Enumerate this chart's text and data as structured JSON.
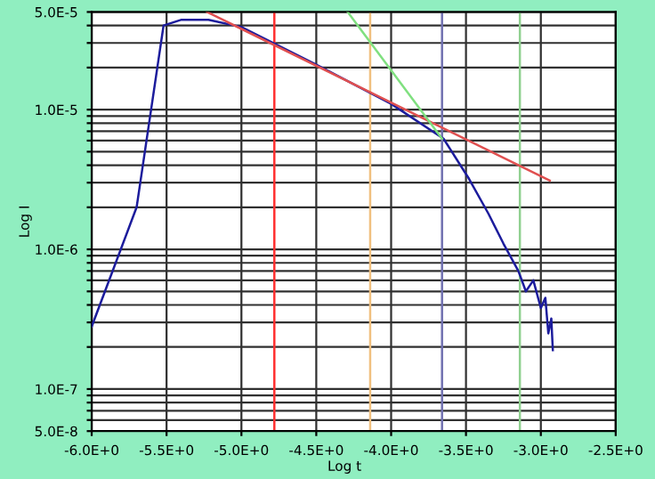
{
  "chart_data": {
    "type": "line",
    "xlabel": "Log t",
    "ylabel": "Log I",
    "log": "y",
    "xlim": [
      -6.0,
      -2.5
    ],
    "ylim": [
      5e-08,
      5e-05
    ],
    "xticks": [
      {
        "value": -6.0,
        "label": "-6.0E+0"
      },
      {
        "value": -5.5,
        "label": "-5.5E+0"
      },
      {
        "value": -5.0,
        "label": "-5.0E+0"
      },
      {
        "value": -4.5,
        "label": "-4.5E+0"
      },
      {
        "value": -4.0,
        "label": "-4.0E+0"
      },
      {
        "value": -3.5,
        "label": "-3.5E+0"
      },
      {
        "value": -3.0,
        "label": "-3.0E+0"
      },
      {
        "value": -2.5,
        "label": "-2.5E+0"
      }
    ],
    "yticks": [
      {
        "value": 5e-08,
        "label": "5.0E-8"
      },
      {
        "value": 6e-08,
        "label": null
      },
      {
        "value": 7e-08,
        "label": null
      },
      {
        "value": 8e-08,
        "label": null
      },
      {
        "value": 9e-08,
        "label": null
      },
      {
        "value": 1e-07,
        "label": "1.0E-7"
      },
      {
        "value": 2e-07,
        "label": null
      },
      {
        "value": 3e-07,
        "label": null
      },
      {
        "value": 4e-07,
        "label": null
      },
      {
        "value": 5e-07,
        "label": null
      },
      {
        "value": 6e-07,
        "label": null
      },
      {
        "value": 7e-07,
        "label": null
      },
      {
        "value": 8e-07,
        "label": null
      },
      {
        "value": 9e-07,
        "label": null
      },
      {
        "value": 1e-06,
        "label": "1.0E-6"
      },
      {
        "value": 2e-06,
        "label": null
      },
      {
        "value": 3e-06,
        "label": null
      },
      {
        "value": 4e-06,
        "label": null
      },
      {
        "value": 5e-06,
        "label": null
      },
      {
        "value": 6e-06,
        "label": null
      },
      {
        "value": 7e-06,
        "label": null
      },
      {
        "value": 8e-06,
        "label": null
      },
      {
        "value": 9e-06,
        "label": null
      },
      {
        "value": 1e-05,
        "label": "1.0E-5"
      },
      {
        "value": 2e-05,
        "label": null
      },
      {
        "value": 3e-05,
        "label": null
      },
      {
        "value": 4e-05,
        "label": null
      },
      {
        "value": 5e-05,
        "label": "5.0E-5"
      }
    ],
    "grid": true,
    "marker": "none",
    "line_style": "solid",
    "series": [
      {
        "color": "#1c1c9c",
        "x": [
          -6.0,
          -5.7,
          -5.52,
          -5.4,
          -5.22,
          -5.0,
          -4.5,
          -4.0,
          -3.65,
          -3.48,
          -3.35,
          -3.25,
          -3.15,
          -3.1,
          -3.05,
          -3.0,
          -2.97,
          -2.95,
          -2.93,
          -2.92
        ],
        "values": [
          2.8e-07,
          2e-06,
          4e-05,
          4.4e-05,
          4.4e-05,
          3.9e-05,
          2.1e-05,
          1.1e-05,
          6.2e-06,
          3.2e-06,
          1.8e-06,
          1.1e-06,
          7e-07,
          5e-07,
          6e-07,
          3.8e-07,
          4.5e-07,
          2.5e-07,
          3.2e-07,
          1.9e-07
        ]
      },
      {
        "color": "#e05050",
        "x": [
          -5.23,
          -2.94
        ],
        "values": [
          5e-05,
          3.1e-06
        ]
      },
      {
        "color": "#80e080",
        "x": [
          -4.29,
          -3.66
        ],
        "values": [
          5e-05,
          6.2e-06
        ]
      }
    ],
    "ref_lines": [
      {
        "axis": "x",
        "value": -4.78,
        "color": "#ff3030"
      },
      {
        "axis": "x",
        "value": -4.14,
        "color": "#f0c080"
      },
      {
        "axis": "x",
        "value": -3.66,
        "color": "#7070b0"
      },
      {
        "axis": "x",
        "value": -3.14,
        "color": "#90d090"
      }
    ]
  }
}
